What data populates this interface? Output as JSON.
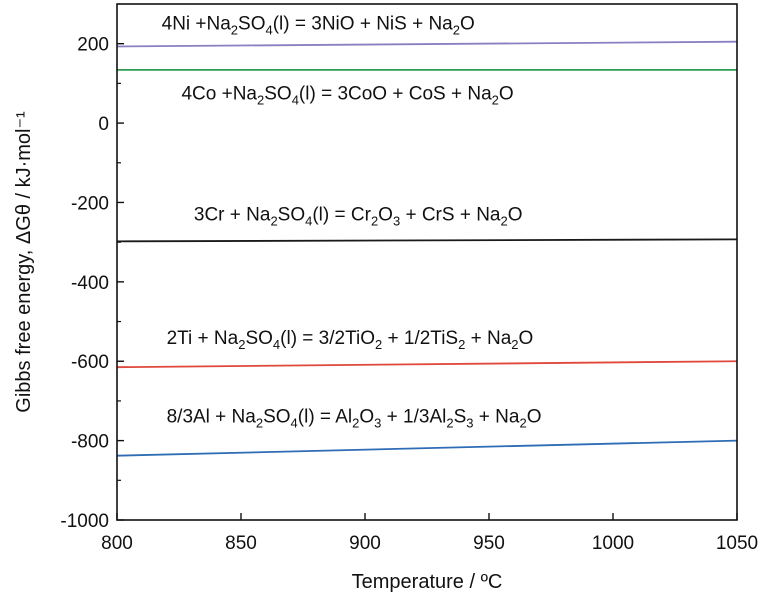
{
  "chart_data": {
    "type": "line",
    "xlabel": "Temperature / ºC",
    "ylabel": "Gibbs free energy, ΔGθ / kJ·mol⁻¹",
    "xlim": [
      800,
      1050
    ],
    "ylim": [
      -1000,
      300
    ],
    "xticks": [
      800,
      850,
      900,
      950,
      1000,
      1050
    ],
    "yticks": [
      -1000,
      -800,
      -600,
      -400,
      -200,
      0,
      200
    ],
    "grid": false,
    "series": [
      {
        "key": "ni",
        "color": "#8a7fc0",
        "x": [
          800,
          1050
        ],
        "y": [
          193,
          205
        ],
        "label": [
          {
            "t": "4Ni +Na"
          },
          {
            "t": "2",
            "s": 1
          },
          {
            "t": "SO"
          },
          {
            "t": "4",
            "s": 1
          },
          {
            "t": "(l) = 3NiO + NiS + Na"
          },
          {
            "t": "2",
            "s": 1
          },
          {
            "t": "O"
          }
        ],
        "label_pos": {
          "x": 818,
          "y": 236
        }
      },
      {
        "key": "co",
        "color": "#2e9e52",
        "x": [
          800,
          1050
        ],
        "y": [
          134,
          134
        ],
        "label": [
          {
            "t": "4Co +Na"
          },
          {
            "t": "2",
            "s": 1
          },
          {
            "t": "SO"
          },
          {
            "t": "4",
            "s": 1
          },
          {
            "t": "(l) = 3CoO + CoS + Na"
          },
          {
            "t": "2",
            "s": 1
          },
          {
            "t": "O"
          }
        ],
        "label_pos": {
          "x": 826,
          "y": 60
        }
      },
      {
        "key": "cr",
        "color": "#1a1a1a",
        "x": [
          800,
          1050
        ],
        "y": [
          -298,
          -293
        ],
        "label": [
          {
            "t": "3Cr + Na"
          },
          {
            "t": "2",
            "s": 1
          },
          {
            "t": "SO"
          },
          {
            "t": "4",
            "s": 1
          },
          {
            "t": "(l) = Cr"
          },
          {
            "t": "2",
            "s": 1
          },
          {
            "t": "O"
          },
          {
            "t": "3",
            "s": 1
          },
          {
            "t": " + CrS + Na"
          },
          {
            "t": "2",
            "s": 1
          },
          {
            "t": "O"
          }
        ],
        "label_pos": {
          "x": 831,
          "y": -246
        }
      },
      {
        "key": "ti",
        "color": "#e0483c",
        "x": [
          800,
          1050
        ],
        "y": [
          -615,
          -600
        ],
        "label": [
          {
            "t": "2Ti + Na"
          },
          {
            "t": "2",
            "s": 1
          },
          {
            "t": "SO"
          },
          {
            "t": "4",
            "s": 1
          },
          {
            "t": "(l) = 3/2TiO"
          },
          {
            "t": "2",
            "s": 1
          },
          {
            "t": " + 1/2TiS"
          },
          {
            "t": "2",
            "s": 1
          },
          {
            "t": " + Na"
          },
          {
            "t": "2",
            "s": 1
          },
          {
            "t": "O"
          }
        ],
        "label_pos": {
          "x": 820,
          "y": -556
        }
      },
      {
        "key": "al",
        "color": "#2e6db5",
        "x": [
          800,
          1050
        ],
        "y": [
          -838,
          -800
        ],
        "label": [
          {
            "t": "8/3Al + Na"
          },
          {
            "t": "2",
            "s": 1
          },
          {
            "t": "SO"
          },
          {
            "t": "4",
            "s": 1
          },
          {
            "t": "(l) = Al"
          },
          {
            "t": "2",
            "s": 1
          },
          {
            "t": "O"
          },
          {
            "t": "3",
            "s": 1
          },
          {
            "t": " + 1/3Al"
          },
          {
            "t": "2",
            "s": 1
          },
          {
            "t": "S"
          },
          {
            "t": "3",
            "s": 1
          },
          {
            "t": " + Na"
          },
          {
            "t": "2",
            "s": 1
          },
          {
            "t": "O"
          }
        ],
        "label_pos": {
          "x": 820,
          "y": -754
        }
      }
    ]
  }
}
